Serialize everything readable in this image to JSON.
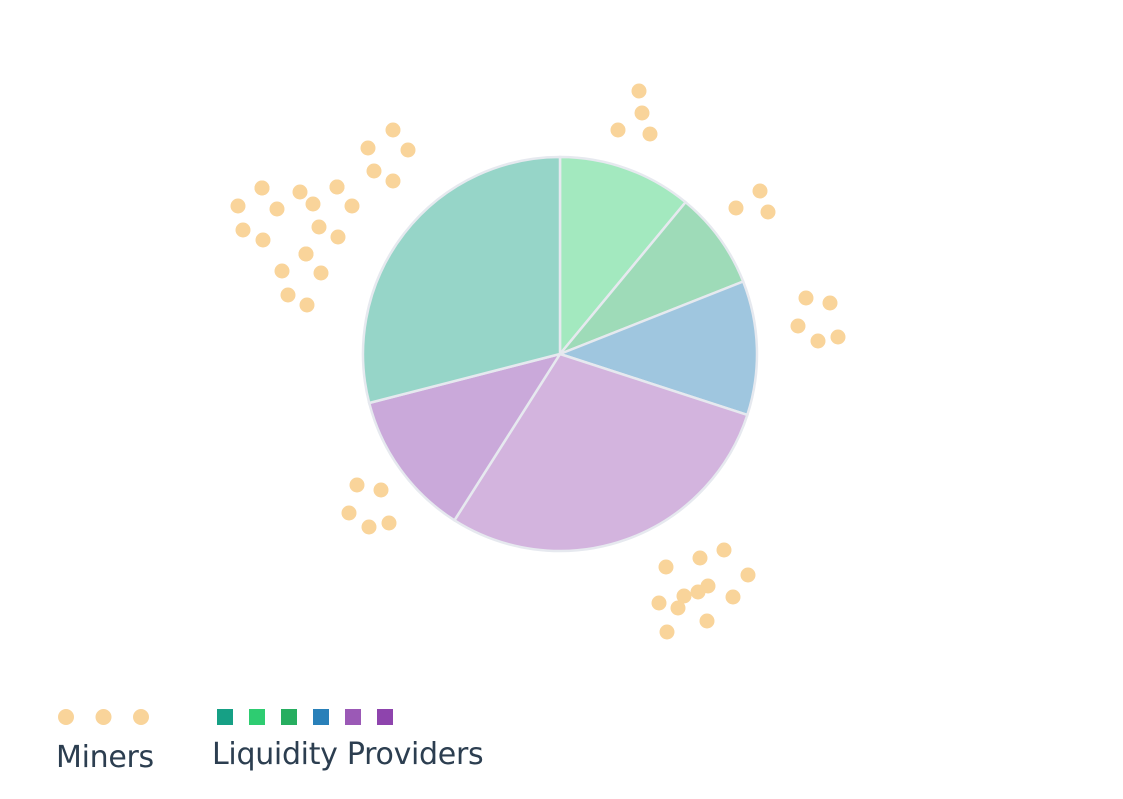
{
  "chart_data": {
    "type": "pie",
    "title": "",
    "slices": [
      {
        "value": 11,
        "color": "#a3e9bf"
      },
      {
        "value": 8,
        "color": "#9edbb8"
      },
      {
        "value": 11,
        "color": "#9fc6df"
      },
      {
        "value": 29,
        "color": "#d3b4de"
      },
      {
        "value": 12,
        "color": "#caa9da"
      },
      {
        "value": 29,
        "color": "#96d5c8"
      }
    ],
    "slice_order": "clockwise from 12 o'clock",
    "miner_groups": [
      {
        "slice": 0,
        "count": 4
      },
      {
        "slice": 1,
        "count": 3
      },
      {
        "slice": 2,
        "count": 5
      },
      {
        "slice": 3,
        "count": 12
      },
      {
        "slice": 4,
        "count": 5
      },
      {
        "slice": 5,
        "count": 6
      },
      {
        "slice": 5,
        "count": 7
      },
      {
        "slice": 5,
        "count": 6
      }
    ],
    "miner_color": "#f9d49a",
    "legend": {
      "placement": "bottom-left",
      "miners": {
        "label": "Miners",
        "markers": 3,
        "color": "#f9d49a"
      },
      "providers": {
        "label": "Liquidity Providers",
        "colors": [
          "#16a085",
          "#2ecc71",
          "#27ae60",
          "#2980b9",
          "#9b59b6",
          "#8e44ad"
        ]
      }
    }
  }
}
